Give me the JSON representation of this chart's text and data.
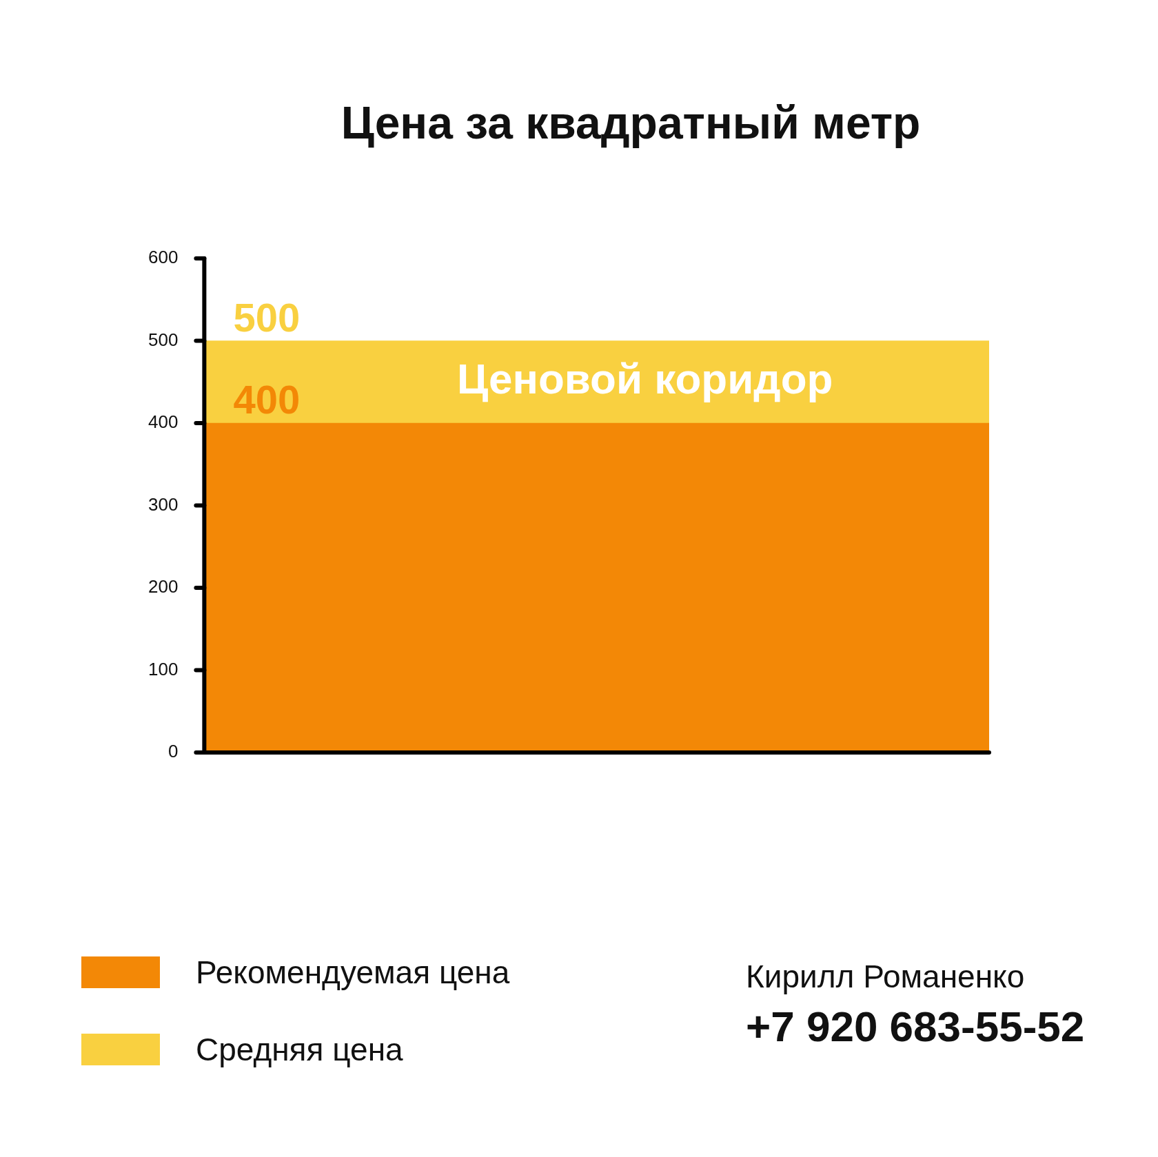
{
  "chart_data": {
    "type": "bar",
    "title": "Цена за квадратный метр",
    "categories": [
      null
    ],
    "stacked": true,
    "series": [
      {
        "name": "Рекомендуемая цена",
        "color": "#f38806",
        "values": [
          400
        ],
        "value_labels": [
          "400"
        ]
      },
      {
        "name": "Средняя цена",
        "color": "#f9d040",
        "values": [
          100
        ]
      }
    ],
    "totals": [
      "500"
    ],
    "ylim": [
      0,
      600
    ],
    "yticks": [
      0,
      100,
      200,
      300,
      400,
      500,
      600
    ],
    "grid": false,
    "legend": "bottom left",
    "annotations": [
      "Ценовой коридор",
      "Кирилл Романенко",
      "+7 920 683-55-52"
    ]
  }
}
